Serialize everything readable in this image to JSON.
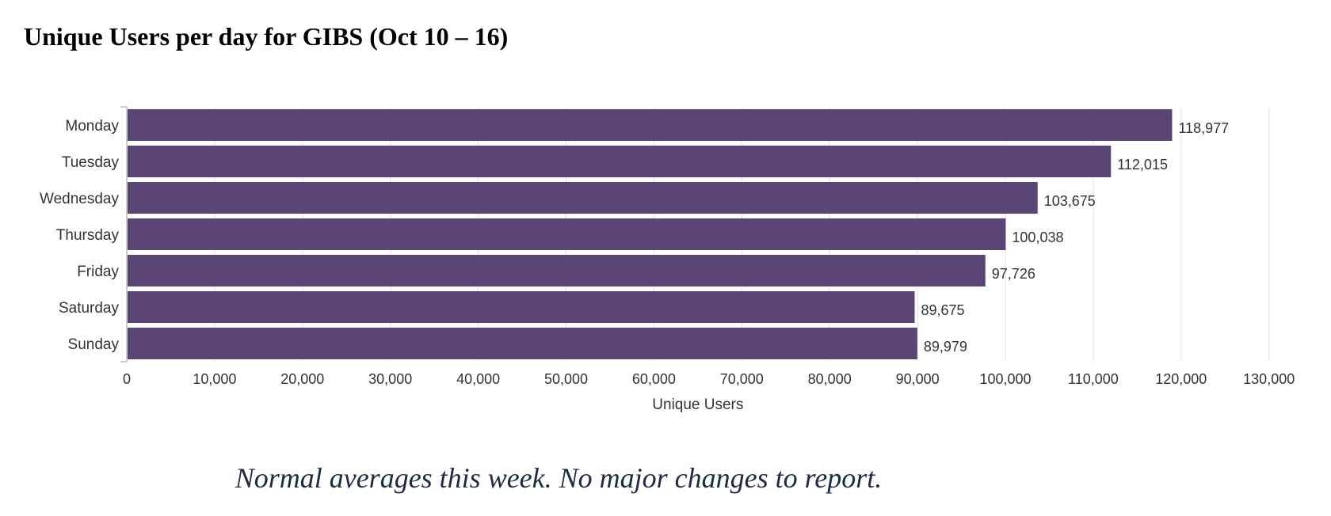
{
  "title": "Unique Users per day for GIBS (Oct 10 – 16)",
  "note": "Normal averages this week.  No major changes to report.",
  "chart_data": {
    "type": "bar",
    "orientation": "horizontal",
    "title": "Unique Users per day for GIBS (Oct 10 – 16)",
    "categories": [
      "Monday",
      "Tuesday",
      "Wednesday",
      "Thursday",
      "Friday",
      "Saturday",
      "Sunday"
    ],
    "values": [
      118977,
      112015,
      103675,
      100038,
      97726,
      89675,
      89979
    ],
    "value_labels": [
      "118,977",
      "112,015",
      "103,675",
      "100,038",
      "97,726",
      "89,675",
      "89,979"
    ],
    "xlabel": "Unique Users",
    "ylabel": "",
    "xlim": [
      0,
      130000
    ],
    "ticks": [
      0,
      10000,
      20000,
      30000,
      40000,
      50000,
      60000,
      70000,
      80000,
      90000,
      100000,
      110000,
      120000,
      130000
    ],
    "tick_labels": [
      "0",
      "10,000",
      "20,000",
      "30,000",
      "40,000",
      "50,000",
      "60,000",
      "70,000",
      "80,000",
      "90,000",
      "100,000",
      "110,000",
      "120,000",
      "130,000"
    ],
    "grid": true,
    "legend": "none",
    "bar_color": "#5a4675",
    "grid_color": "#dde0e6",
    "text_color": "#333333"
  }
}
